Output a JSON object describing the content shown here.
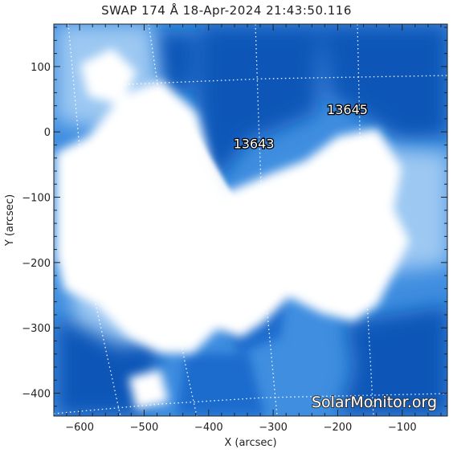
{
  "title": "SWAP 174 Å 18-Apr-2024 21:43:50.116",
  "axes": {
    "xlabel": "X (arcsec)",
    "ylabel": "Y (arcsec)",
    "xlim": [
      -640,
      -30
    ],
    "ylim": [
      -435,
      165
    ],
    "xticks": [
      -600,
      -500,
      -400,
      -300,
      -200,
      -100
    ],
    "yticks": [
      100,
      0,
      -100,
      -200,
      -300,
      -400
    ]
  },
  "active_regions": [
    {
      "label": "13643",
      "x": -330,
      "y": -25
    },
    {
      "label": "13645",
      "x": -185,
      "y": 27
    }
  ],
  "watermark": "SolarMonitor.org",
  "colors": {
    "dark_blue": "#0b57b8",
    "mid_blue": "#3f8ee0",
    "light_blue": "#9cc8f2",
    "saturated": "#ffffff"
  }
}
